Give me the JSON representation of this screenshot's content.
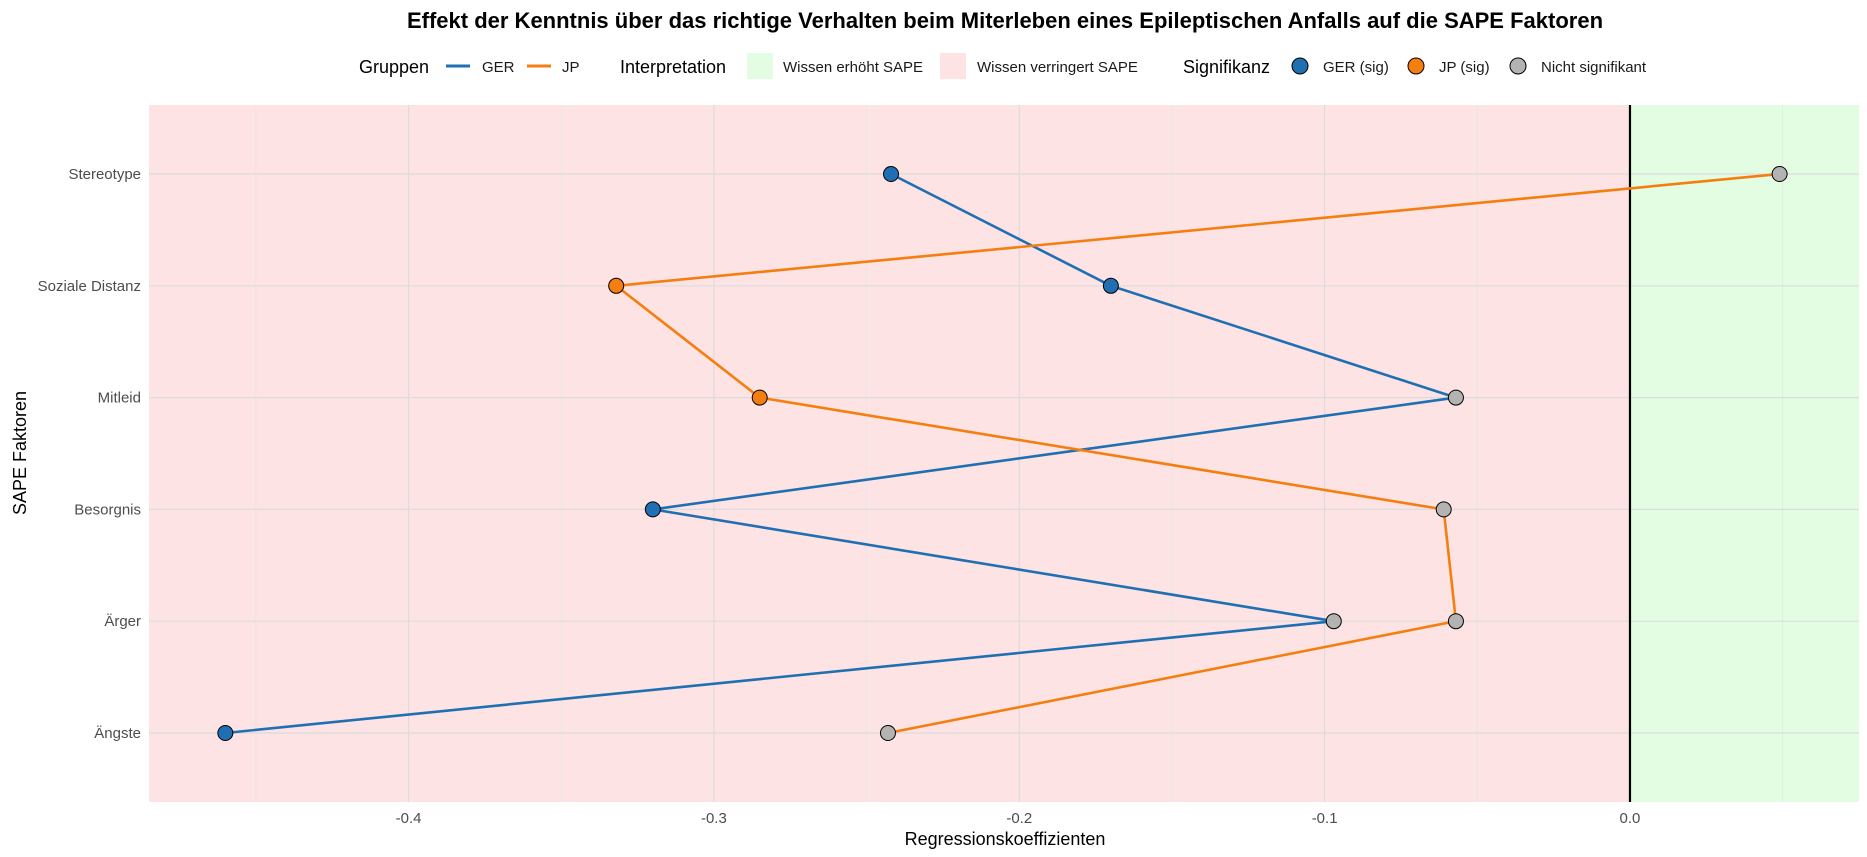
{
  "chart_data": {
    "type": "line",
    "orientation": "horizontal",
    "title": "Effekt der Kenntnis über das richtige Verhalten beim Miterleben eines Epileptischen Anfalls auf die SAPE Faktoren",
    "xlabel": "Regressionskoeffizienten",
    "ylabel": "SAPE Faktoren",
    "categories": [
      "Ängste",
      "Ärger",
      "Besorgnis",
      "Mitleid",
      "Soziale Distanz",
      "Stereotype"
    ],
    "xlim": [
      -0.485,
      0.075
    ],
    "x_ticks": [
      -0.4,
      -0.3,
      -0.2,
      -0.1,
      0.0
    ],
    "x_tick_labels": [
      "-0.4",
      "-0.3",
      "-0.2",
      "-0.1",
      "0.0"
    ],
    "grid": true,
    "reference_line_x": 0.0,
    "regions": [
      {
        "name": "Wissen verringert SAPE",
        "from": -0.485,
        "to": 0.0,
        "color": "#fde3e3"
      },
      {
        "name": "Wissen erhöht SAPE",
        "from": 0.0,
        "to": 0.075,
        "color": "#e2fde2"
      }
    ],
    "series": [
      {
        "name": "GER",
        "color": "#1f6fb2",
        "values": [
          -0.46,
          -0.097,
          -0.32,
          -0.057,
          -0.17,
          -0.242
        ],
        "significant": [
          true,
          false,
          true,
          false,
          true,
          true
        ]
      },
      {
        "name": "JP",
        "color": "#f57e11",
        "values": [
          -0.243,
          -0.057,
          -0.061,
          -0.285,
          -0.332,
          0.049
        ],
        "significant": [
          false,
          false,
          false,
          true,
          true,
          false
        ]
      }
    ],
    "legend": {
      "placement": "top",
      "groups_title": "Gruppen",
      "groups": [
        {
          "label": "GER",
          "color": "#1f6fb2"
        },
        {
          "label": "JP",
          "color": "#f57e11"
        }
      ],
      "interpretation_title": "Interpretation",
      "interpretation": [
        {
          "label": "Wissen erhöht SAPE",
          "color": "#e2fde2"
        },
        {
          "label": "Wissen verringert SAPE",
          "color": "#fde3e3"
        }
      ],
      "significance_title": "Signifikanz",
      "significance": [
        {
          "label": "GER (sig)",
          "color": "#1f6fb2"
        },
        {
          "label": "JP (sig)",
          "color": "#f57e11"
        },
        {
          "label": "Nicht signifikant",
          "color": "#b3b3b3"
        }
      ]
    },
    "nonsig_color": "#b3b3b3"
  }
}
